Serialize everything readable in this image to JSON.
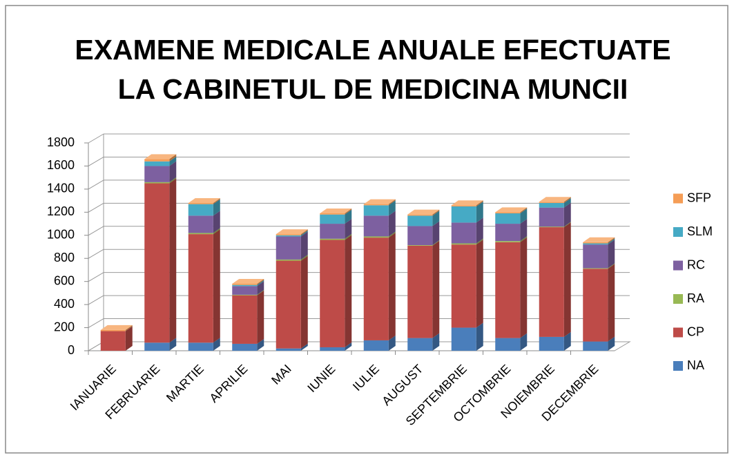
{
  "chart_data": {
    "type": "bar3d_stacked",
    "title": [
      "EXAMENE MEDICALE ANUALE EFECTUATE",
      "LA CABINETUL DE MEDICINA MUNCII"
    ],
    "categories": [
      "IANUARIE",
      "FEBRUARIE",
      "MARTIE",
      "APRILIE",
      "MAI",
      "IUNIE",
      "IULIE",
      "AUGUST",
      "SEPTEMBRIE",
      "OCTOMBRIE",
      "NOIEMBRIE",
      "DECEMBRIE"
    ],
    "series": [
      {
        "name": "NA",
        "color": "#4a7ebb",
        "values": [
          0,
          70,
          70,
          60,
          20,
          30,
          90,
          110,
          200,
          110,
          120,
          80
        ]
      },
      {
        "name": "CP",
        "color": "#be4b48",
        "values": [
          170,
          1380,
          940,
          420,
          760,
          930,
          890,
          800,
          720,
          830,
          950,
          630
        ]
      },
      {
        "name": "RA",
        "color": "#98b954",
        "values": [
          0,
          10,
          10,
          5,
          10,
          10,
          10,
          5,
          10,
          10,
          5,
          5
        ]
      },
      {
        "name": "RC",
        "color": "#7d60a0",
        "values": [
          0,
          140,
          150,
          75,
          200,
          130,
          180,
          165,
          180,
          150,
          165,
          205
        ]
      },
      {
        "name": "SLM",
        "color": "#46aac5",
        "values": [
          0,
          40,
          100,
          10,
          10,
          80,
          90,
          90,
          140,
          90,
          40,
          10
        ]
      },
      {
        "name": "SFP",
        "color": "#f59d56",
        "values": [
          10,
          20,
          10,
          10,
          10,
          10,
          10,
          10,
          10,
          10,
          10,
          10
        ]
      }
    ],
    "ylim": [
      0,
      1800
    ],
    "yticks": [
      0,
      200,
      400,
      600,
      800,
      1000,
      1200,
      1400,
      1600,
      1800
    ],
    "grid": true,
    "legend": "right"
  }
}
